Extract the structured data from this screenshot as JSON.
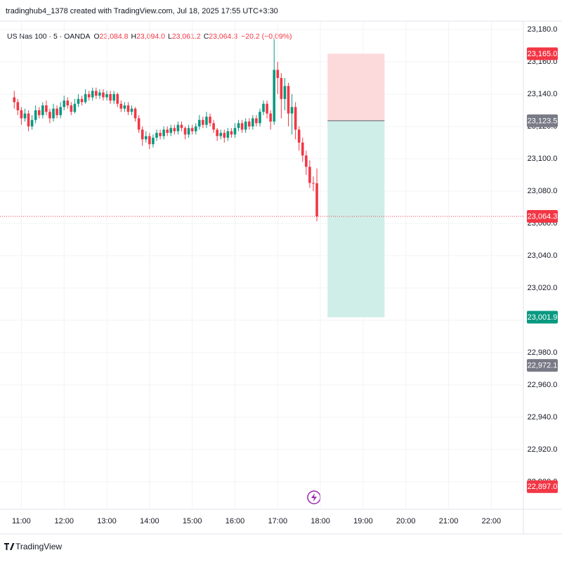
{
  "header": {
    "credit": "tradinghub4_1378 created with TradingView.com, Jul 18, 2025 17:55 UTC+3:30"
  },
  "legend": {
    "symbol": "US Nas 100 · 5 · OANDA",
    "o_key": "O",
    "o": "23,084.8",
    "h_key": "H",
    "h": "23,094.0",
    "l_key": "L",
    "l": "23,061.2",
    "c_key": "C",
    "c": "23,064.3",
    "change": "−20.2 (−0.09%)"
  },
  "footer": {
    "brand": "TradingView"
  },
  "chart_data": {
    "type": "candlestick",
    "up_color": "#089981",
    "down_color": "#f23645",
    "x": [
      "10:50",
      "10:55",
      "11:00",
      "11:05",
      "11:10",
      "11:15",
      "11:20",
      "11:25",
      "11:30",
      "11:35",
      "11:40",
      "11:45",
      "11:50",
      "11:55",
      "12:00",
      "12:05",
      "12:10",
      "12:15",
      "12:20",
      "12:25",
      "12:30",
      "12:35",
      "12:40",
      "12:45",
      "12:50",
      "12:55",
      "13:00",
      "13:05",
      "13:10",
      "13:15",
      "13:20",
      "13:25",
      "13:30",
      "13:35",
      "13:40",
      "13:45",
      "13:50",
      "13:55",
      "14:00",
      "14:05",
      "14:10",
      "14:15",
      "14:20",
      "14:25",
      "14:30",
      "14:35",
      "14:40",
      "14:45",
      "14:50",
      "14:55",
      "15:00",
      "15:05",
      "15:10",
      "15:15",
      "15:20",
      "15:25",
      "15:30",
      "15:35",
      "15:40",
      "15:45",
      "15:50",
      "15:55",
      "16:00",
      "16:05",
      "16:10",
      "16:15",
      "16:20",
      "16:25",
      "16:30",
      "16:35",
      "16:40",
      "16:45",
      "16:50",
      "16:55",
      "17:00",
      "17:05",
      "17:10",
      "17:15",
      "17:20",
      "17:25",
      "17:30",
      "17:35",
      "17:40",
      "17:45",
      "17:50",
      "17:55"
    ],
    "open": [
      23138,
      23135,
      23130,
      23125,
      23128,
      23120,
      23124,
      23130,
      23127,
      23133,
      23129,
      23125,
      23131,
      23127,
      23132,
      23136,
      23133,
      23129,
      23134,
      23137,
      23135,
      23140,
      23138,
      23142,
      23139,
      23141,
      23138,
      23140,
      23136,
      23140,
      23134,
      23131,
      23133,
      23129,
      23131,
      23125,
      23118,
      23112,
      23114,
      23109,
      23113,
      23116,
      23114,
      23118,
      23116,
      23119,
      23117,
      23121,
      23119,
      23115,
      23119,
      23117,
      23120,
      23124,
      23121,
      23126,
      23122,
      23118,
      23114,
      23116,
      23113,
      23117,
      23115,
      23119,
      23122,
      23118,
      23123,
      23120,
      23125,
      23122,
      23129,
      23134,
      23128,
      23123,
      23155,
      23150,
      23137,
      23145,
      23128,
      23132,
      23118,
      23110,
      23102,
      23095,
      23085,
      23084.8
    ],
    "high": [
      23142,
      23137,
      23132,
      23131,
      23130,
      23127,
      23133,
      23132,
      23135,
      23136,
      23131,
      23134,
      23133,
      23135,
      23139,
      23138,
      23135,
      23137,
      23140,
      23139,
      23143,
      23142,
      23144,
      23144,
      23143,
      23143,
      23142,
      23142,
      23142,
      23141,
      23136,
      23135,
      23135,
      23133,
      23132,
      23127,
      23120,
      23117,
      23116,
      23115,
      23118,
      23118,
      23120,
      23120,
      23121,
      23121,
      23123,
      23123,
      23120,
      23121,
      23121,
      23122,
      23127,
      23126,
      23129,
      23128,
      23124,
      23119,
      23118,
      23118,
      23119,
      23119,
      23122,
      23124,
      23124,
      23125,
      23125,
      23127,
      23127,
      23131,
      23136,
      23136,
      23130,
      23174,
      23160,
      23153,
      23150,
      23147,
      23140,
      23135,
      23120,
      23113,
      23105,
      23099,
      23089,
      23094.0
    ],
    "low": [
      23131,
      23127,
      23121,
      23123,
      23117,
      23118,
      23122,
      23125,
      23125,
      23127,
      23122,
      23123,
      23125,
      23125,
      23130,
      23131,
      23127,
      23128,
      23132,
      23133,
      23134,
      23136,
      23136,
      23137,
      23137,
      23136,
      23136,
      23134,
      23134,
      23132,
      23129,
      23129,
      23127,
      23127,
      23123,
      23116,
      23108,
      23110,
      23106,
      23107,
      23111,
      23112,
      23112,
      23114,
      23114,
      23115,
      23115,
      23117,
      23112,
      23113,
      23115,
      23115,
      23118,
      23119,
      23119,
      23120,
      23116,
      23111,
      23112,
      23110,
      23111,
      23113,
      23113,
      23117,
      23116,
      23116,
      23118,
      23118,
      23120,
      23120,
      23127,
      23125,
      23118,
      23121,
      23140,
      23125,
      23130,
      23120,
      23115,
      23112,
      23105,
      23098,
      23090,
      23082,
      23080,
      23061.2
    ],
    "close": [
      23135,
      23130,
      23125,
      23128,
      23120,
      23124,
      23130,
      23127,
      23133,
      23129,
      23125,
      23131,
      23127,
      23132,
      23136,
      23133,
      23129,
      23134,
      23137,
      23135,
      23140,
      23138,
      23142,
      23139,
      23141,
      23138,
      23140,
      23136,
      23140,
      23134,
      23131,
      23133,
      23129,
      23131,
      23125,
      23118,
      23112,
      23114,
      23109,
      23113,
      23116,
      23114,
      23118,
      23116,
      23119,
      23117,
      23121,
      23119,
      23115,
      23119,
      23117,
      23120,
      23124,
      23121,
      23126,
      23122,
      23118,
      23114,
      23116,
      23113,
      23117,
      23115,
      23119,
      23122,
      23118,
      23123,
      23120,
      23125,
      23122,
      23129,
      23134,
      23128,
      23123,
      23155,
      23150,
      23137,
      23145,
      23128,
      23132,
      23118,
      23110,
      23102,
      23095,
      23085,
      23084.8,
      23064.3
    ],
    "xlim": [
      "10:30",
      "22:45"
    ],
    "xticks": [
      "11:00",
      "12:00",
      "13:00",
      "14:00",
      "15:00",
      "16:00",
      "17:00",
      "18:00",
      "19:00",
      "20:00",
      "21:00",
      "22:00"
    ],
    "ylim": [
      22883,
      23185.2
    ],
    "yticks": [
      {
        "value": 23180,
        "label": "23,180.0"
      },
      {
        "value": 23160,
        "label": "23,160.0"
      },
      {
        "value": 23140,
        "label": "23,140.0"
      },
      {
        "value": 23120,
        "label": "23,120.0"
      },
      {
        "value": 23100,
        "label": "23,100.0"
      },
      {
        "value": 23080,
        "label": "23,080.0"
      },
      {
        "value": 23060,
        "label": "23,060.0"
      },
      {
        "value": 23040,
        "label": "23,040.0"
      },
      {
        "value": 23020,
        "label": "23,020.0"
      },
      {
        "value": 23000,
        "label": "23,000.0"
      },
      {
        "value": 22980,
        "label": "22,980.0"
      },
      {
        "value": 22960,
        "label": "22,960.0"
      },
      {
        "value": 22940,
        "label": "22,940.0"
      },
      {
        "value": 22920,
        "label": "22,920.0"
      },
      {
        "value": 22900,
        "label": "22,900.0"
      }
    ],
    "position": {
      "start": "18:10",
      "end": "19:30",
      "stop_color": "#fcd9db",
      "target_color": "#cfeee8",
      "stop": {
        "value": 23165,
        "label": "23,165.0",
        "color": "#f23645"
      },
      "entry": {
        "value": 23123.5,
        "label": "23,123.5",
        "color": "#787b86"
      },
      "target": {
        "value": 23001.9,
        "label": "23,001.9",
        "color": "#089981"
      }
    },
    "price_labels": [
      {
        "value": 23064.3,
        "label": "23,064.3",
        "color": "#f23645"
      },
      {
        "value": 22972.1,
        "label": "22,972.1",
        "color": "#787b86"
      },
      {
        "value": 22897.0,
        "label": "22,897.0",
        "color": "#f23645"
      }
    ]
  }
}
